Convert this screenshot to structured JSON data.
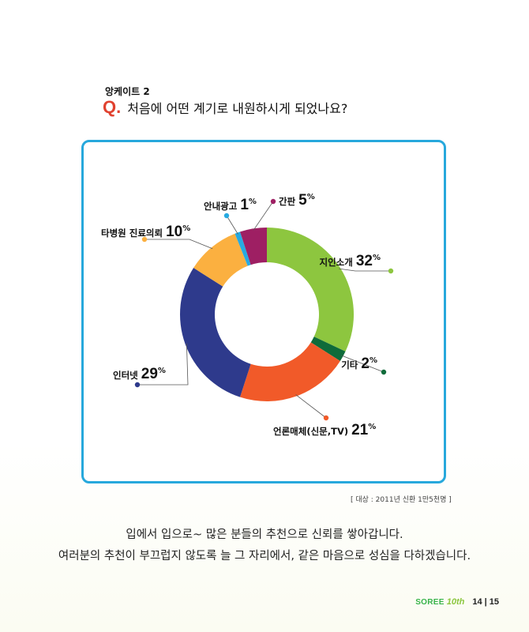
{
  "survey": {
    "label": "앙케이트 2",
    "q_mark": "Q.",
    "question": "처음에 어떤 계기로 내원하시게 되었나요?"
  },
  "chart_data": {
    "type": "pie",
    "donut": true,
    "slices": [
      {
        "label": "지인소개",
        "value": 32,
        "color": "#8dc63f"
      },
      {
        "label": "기타",
        "value": 2,
        "color": "#0f6b3a"
      },
      {
        "label": "언론매체(신문,TV)",
        "value": 21,
        "color": "#f15a29"
      },
      {
        "label": "인터넷",
        "value": 29,
        "color": "#2e3a8c"
      },
      {
        "label": "타병원 진료의뢰",
        "value": 10,
        "color": "#fbb040"
      },
      {
        "label": "안내광고",
        "value": 1,
        "color": "#27aae1"
      },
      {
        "label": "간판",
        "value": 5,
        "color": "#9e1f63"
      }
    ]
  },
  "note": "[ 대상 : 2011년 신환 1만5천명 ]",
  "closing": {
    "line1": "입에서 입으로~ 많은 분들의 추천으로 신뢰를 쌓아갑니다.",
    "line2": "여러분의 추천이 부끄럽지 않도록 늘 그 자리에서, 같은 마음으로 성심을 다하겠습니다."
  },
  "footer": {
    "brand": "SOREE",
    "anniversary": "10th",
    "pages": "14 | 15"
  }
}
